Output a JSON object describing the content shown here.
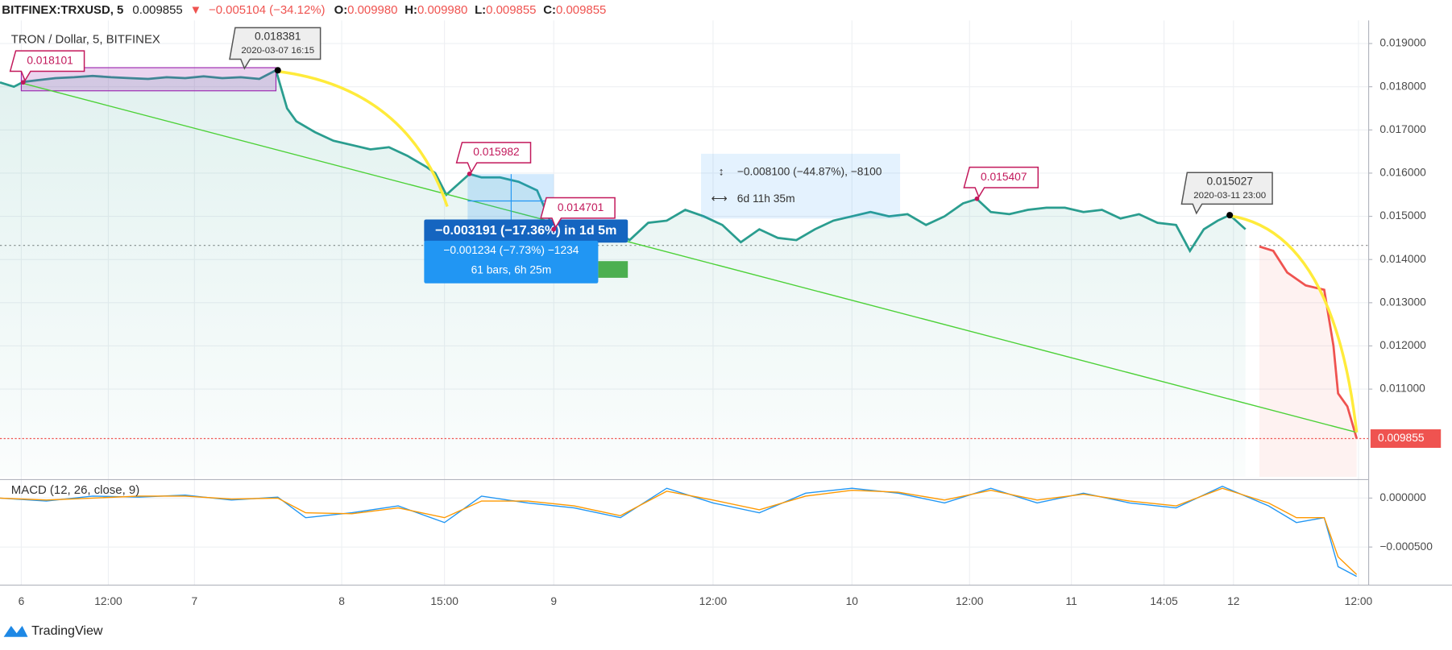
{
  "header": {
    "symbol": "BITFINEX:TRXUSD, 5",
    "price": "0.009855",
    "change": "−0.005104 (−34.12%)",
    "o_label": "O:",
    "o": "0.009980",
    "h_label": "H:",
    "h": "0.009980",
    "l_label": "L:",
    "l": "0.009855",
    "c_label": "C:",
    "c": "0.009855"
  },
  "brand": "TradingView",
  "chart_data": [
    {
      "type": "line",
      "title": "TRON / Dollar, 5, BITFINEX",
      "x": [
        0,
        15,
        25,
        40,
        60,
        80,
        100,
        120,
        140,
        160,
        180,
        200,
        220,
        240,
        260,
        280,
        298,
        310,
        320,
        340,
        360,
        380,
        400,
        420,
        440,
        460,
        470,
        482,
        495,
        507,
        520,
        540,
        560,
        580,
        598,
        620,
        640,
        660,
        680,
        700,
        720,
        740,
        760,
        780,
        800,
        820,
        840,
        860,
        880,
        900,
        920,
        940,
        960,
        980,
        1000,
        1020,
        1040,
        1055,
        1070,
        1090,
        1110,
        1130,
        1150,
        1170,
        1190,
        1210,
        1230,
        1250,
        1270,
        1285,
        1300,
        1315,
        1328,
        1345,
        1360,
        1375,
        1390,
        1410,
        1430,
        1440,
        1445,
        1455,
        1465
      ],
      "series": [
        {
          "color": "#2a9d8f",
          "values": [
            0.0181,
            0.018,
            0.01811,
            0.01815,
            0.0182,
            0.01822,
            0.01825,
            0.01822,
            0.0182,
            0.01818,
            0.01822,
            0.0182,
            0.01824,
            0.0182,
            0.01822,
            0.01818,
            0.01838,
            0.0175,
            0.0172,
            0.01695,
            0.01675,
            0.01665,
            0.01655,
            0.0166,
            0.0164,
            0.01615,
            0.016,
            0.0155,
            0.01575,
            0.01598,
            0.0159,
            0.0159,
            0.0158,
            0.0156,
            0.0147,
            0.01485,
            0.0148,
            0.0147,
            0.01445,
            0.01485,
            0.0149,
            0.01515,
            0.015,
            0.0148,
            0.0144,
            0.0147,
            0.0145,
            0.01445,
            0.0147,
            0.0149,
            0.015,
            0.0151,
            0.015,
            0.01505,
            0.0148,
            0.015,
            0.0153,
            0.0154,
            0.0151,
            0.01505,
            0.01515,
            0.0152,
            0.0152,
            0.0151,
            0.01515,
            0.01495,
            0.01505,
            0.01485,
            0.0148,
            0.0142,
            0.0147,
            0.0149,
            0.01503,
            0.0147,
            null,
            null,
            null,
            null,
            null,
            null,
            null,
            null,
            null
          ]
        },
        {
          "color": "#ef5350",
          "values": [
            null,
            null,
            null,
            null,
            null,
            null,
            null,
            null,
            null,
            null,
            null,
            null,
            null,
            null,
            null,
            null,
            null,
            null,
            null,
            null,
            null,
            null,
            null,
            null,
            null,
            null,
            null,
            null,
            null,
            null,
            null,
            null,
            null,
            null,
            null,
            null,
            null,
            null,
            null,
            null,
            null,
            null,
            null,
            null,
            null,
            null,
            null,
            null,
            null,
            null,
            null,
            null,
            null,
            null,
            null,
            null,
            null,
            null,
            null,
            null,
            null,
            null,
            null,
            null,
            null,
            null,
            null,
            null,
            null,
            null,
            null,
            null,
            null,
            null,
            0.0143,
            0.0142,
            0.0137,
            0.0134,
            0.0133,
            0.012,
            0.0109,
            0.0106,
            0.00986
          ]
        }
      ],
      "last_value": 0.009855,
      "annotations": [
        {
          "x": 25,
          "value": 0.018101,
          "style": "pink"
        },
        {
          "x": 300,
          "value": 0.018381,
          "date": "2020-03-07 16:15",
          "style": "gray"
        },
        {
          "x": 507,
          "value": 0.015982,
          "style": "pink"
        },
        {
          "x": 598,
          "value": 0.014701,
          "style": "pink"
        },
        {
          "x": 1055,
          "value": 0.015407,
          "style": "pink"
        },
        {
          "x": 1328,
          "value": 0.015027,
          "date": "2020-03-11 23:00",
          "style": "gray"
        }
      ],
      "measure_small": {
        "line1": "−0.003191 (−17.36%) in 1d 5m",
        "line2": "−0.001234 (−7.73%) −1234",
        "line3": "61 bars, 6h 25m"
      },
      "measure_big": {
        "line1": "−0.008100 (−44.87%), −8100",
        "line2": "6d 11h 35m"
      },
      "xlim": [
        0,
        1478
      ],
      "xticks": [
        {
          "value": 23,
          "label": "6"
        },
        {
          "value": 117,
          "label": "12:00"
        },
        {
          "value": 210,
          "label": "7"
        },
        {
          "value": 369,
          "label": "8"
        },
        {
          "value": 480,
          "label": "15:00"
        },
        {
          "value": 598,
          "label": "9"
        },
        {
          "value": 770,
          "label": "12:00"
        },
        {
          "value": 920,
          "label": "10"
        },
        {
          "value": 1047,
          "label": "12:00"
        },
        {
          "value": 1157,
          "label": "11"
        },
        {
          "value": 1257,
          "label": "14:05"
        },
        {
          "value": 1332,
          "label": "12"
        },
        {
          "value": 1467,
          "label": "12:00"
        }
      ],
      "ylim": [
        0.00897,
        0.019534
      ],
      "yticks": [
        {
          "value": 0.011,
          "label": "0.011000"
        },
        {
          "value": 0.012,
          "label": "0.012000"
        },
        {
          "value": 0.013,
          "label": "0.013000"
        },
        {
          "value": 0.014,
          "label": "0.014000"
        },
        {
          "value": 0.015,
          "label": "0.015000"
        },
        {
          "value": 0.016,
          "label": "0.016000"
        },
        {
          "value": 0.017,
          "label": "0.017000"
        },
        {
          "value": 0.018,
          "label": "0.018000"
        },
        {
          "value": 0.019,
          "label": "0.019000"
        }
      ],
      "grid": true
    },
    {
      "type": "line",
      "title": "MACD (12, 26, close, 9)",
      "x": [
        0,
        50,
        100,
        150,
        200,
        250,
        300,
        330,
        380,
        430,
        480,
        520,
        570,
        620,
        670,
        720,
        770,
        820,
        870,
        920,
        970,
        1020,
        1070,
        1120,
        1170,
        1220,
        1270,
        1320,
        1370,
        1400,
        1430,
        1445,
        1465
      ],
      "series": [
        {
          "color": "#2196f3",
          "values": [
            0,
            -3e-05,
            2e-05,
            1e-05,
            3e-05,
            -2e-05,
            1e-05,
            -0.0002,
            -0.00015,
            -8e-05,
            -0.00025,
            2e-05,
            -5e-05,
            -0.0001,
            -0.0002,
            0.0001,
            -5e-05,
            -0.00015,
            5e-05,
            0.0001,
            5e-05,
            -5e-05,
            0.0001,
            -5e-05,
            5e-05,
            -5e-05,
            -0.0001,
            0.00012,
            -8e-05,
            -0.00025,
            -0.0002,
            -0.0007,
            -0.0008
          ]
        },
        {
          "color": "#ff9800",
          "values": [
            0,
            -2e-05,
            0,
            2e-05,
            2e-05,
            -1e-05,
            0,
            -0.00015,
            -0.00016,
            -0.0001,
            -0.0002,
            -3e-05,
            -3e-05,
            -8e-05,
            -0.00018,
            7e-05,
            -2e-05,
            -0.00012,
            2e-05,
            8e-05,
            6e-05,
            -2e-05,
            8e-05,
            -2e-05,
            4e-05,
            -3e-05,
            -8e-05,
            0.0001,
            -5e-05,
            -0.0002,
            -0.0002,
            -0.0006,
            -0.00078
          ]
        }
      ],
      "xlim": [
        0,
        1478
      ],
      "ylim": [
        -0.00087,
        0.00017
      ],
      "yticks": [
        {
          "value": -0.0005,
          "label": "−0.000500"
        },
        {
          "value": 0,
          "label": "0.000000"
        }
      ],
      "grid": true
    }
  ]
}
